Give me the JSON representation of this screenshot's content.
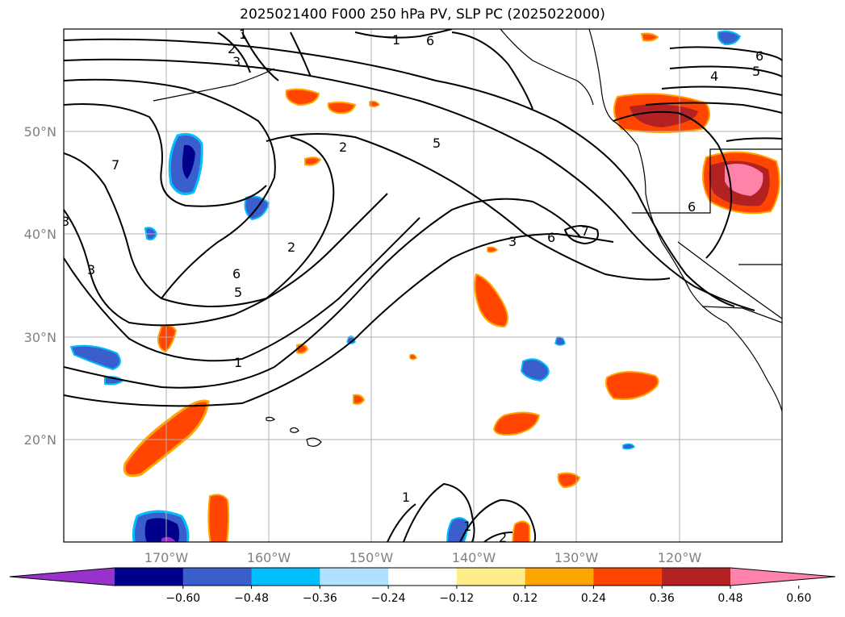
{
  "title": "2025021400 F000 250 hPa PV, SLP PC (2025022000)",
  "map": {
    "projection": "equirectangular",
    "extent_lon": [
      -180,
      -110
    ],
    "extent_lat": [
      10,
      60
    ],
    "grid": true,
    "lon_labels": [
      "170°W",
      "160°W",
      "150°W",
      "140°W",
      "130°W",
      "120°W"
    ],
    "lat_labels": [
      "20°N",
      "30°N",
      "40°N",
      "50°N"
    ],
    "colors": {
      "grid": "#b0b0b0",
      "coast": "#000000",
      "contour": "#000000"
    }
  },
  "contour_labels": [
    "1",
    "2",
    "3",
    "4",
    "5",
    "6",
    "7"
  ],
  "colorbar": {
    "ticks": [
      "−0.60",
      "−0.48",
      "−0.36",
      "−0.24",
      "−0.12",
      "0.12",
      "0.24",
      "0.36",
      "0.48",
      "0.60"
    ],
    "colors": [
      "#9932cc",
      "#00008b",
      "#3a5fcd",
      "#00bfff",
      "#b0e2ff",
      "#ffffff",
      "#ffec8b",
      "#ffa500",
      "#ff4500",
      "#b22222",
      "#ff82ab"
    ]
  }
}
